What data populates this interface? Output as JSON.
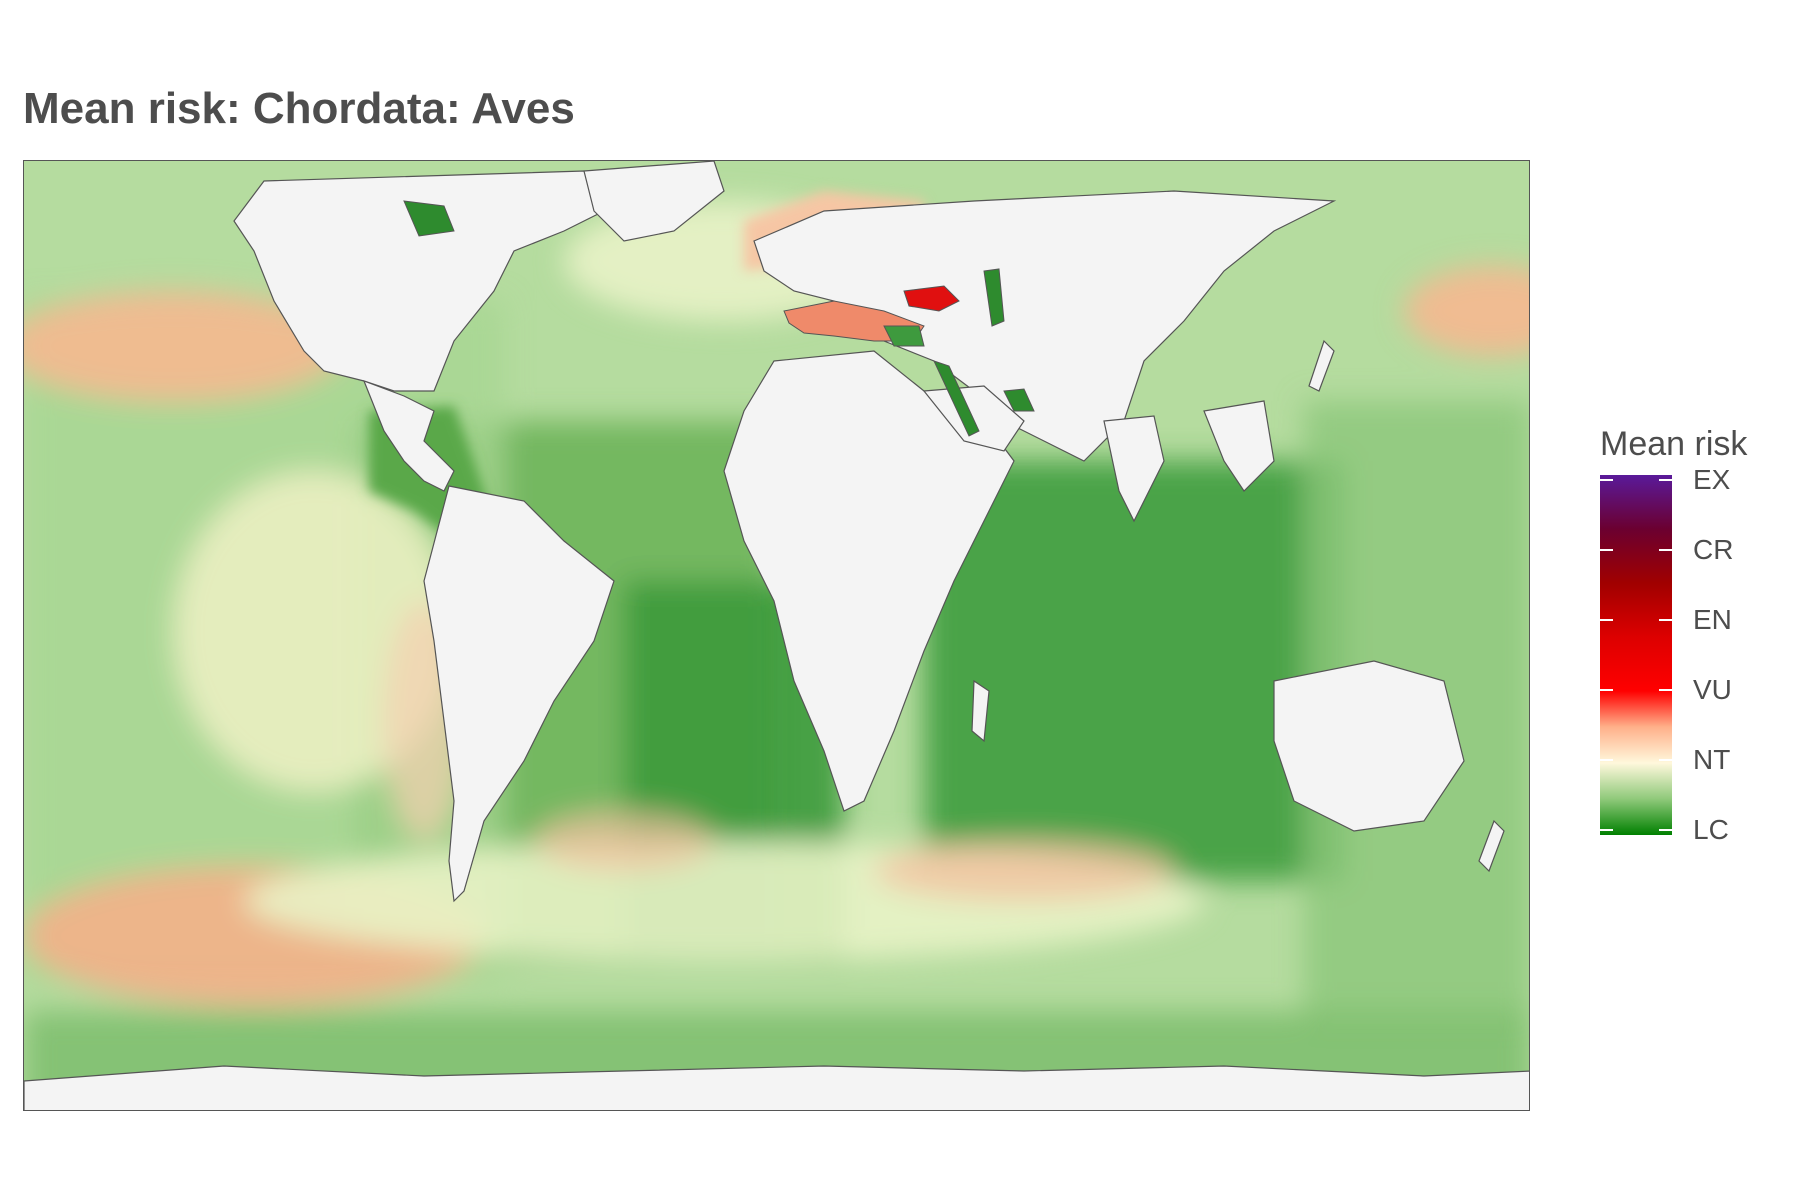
{
  "title": "Mean risk: Chordata: Aves",
  "legend": {
    "title": "Mean risk",
    "categories": [
      "LC",
      "NT",
      "VU",
      "EN",
      "CR",
      "EX"
    ],
    "colors": {
      "LC": "#008000",
      "NT": "#fff8dc",
      "VU": "#ff0000",
      "EN": "#dd0000",
      "CR": "#a00000",
      "EX": "#5a1a9a"
    }
  },
  "map": {
    "land_color": "#f4f4f4",
    "coast_color": "#555555",
    "ocean_palette": {
      "low_risk": "#3a9a3a",
      "mid_green": "#9fd08a",
      "pale": "#e6f2c8",
      "near_threatened": "#fbe2c8",
      "elevated": "#f4a882",
      "high": "#e02010"
    }
  }
}
